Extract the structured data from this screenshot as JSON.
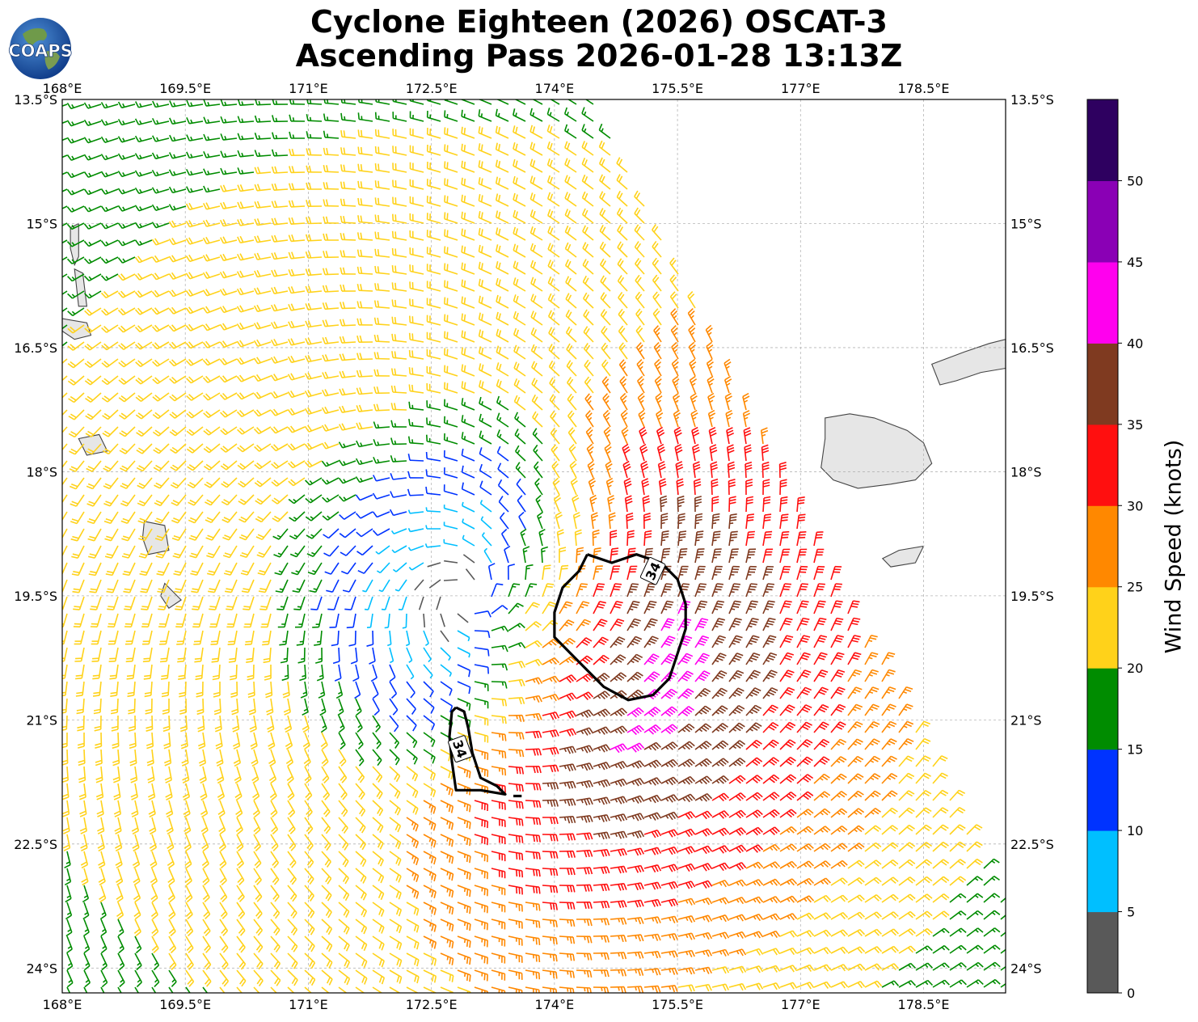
{
  "header": {
    "title_line1": "Cyclone Eighteen (2026) OSCAT-3",
    "title_line2": "Ascending Pass 2026-01-28 13:13Z",
    "logo_text": "COAPS"
  },
  "map": {
    "lon_range": [
      168.0,
      179.5
    ],
    "lat_range": [
      -24.3,
      -13.5
    ],
    "lon_ticks": [
      {
        "value": 168.0,
        "label": "168°E"
      },
      {
        "value": 169.5,
        "label": "169.5°E"
      },
      {
        "value": 171.0,
        "label": "171°E"
      },
      {
        "value": 172.5,
        "label": "172.5°E"
      },
      {
        "value": 174.0,
        "label": "174°E"
      },
      {
        "value": 175.5,
        "label": "175.5°E"
      },
      {
        "value": 177.0,
        "label": "177°E"
      },
      {
        "value": 178.5,
        "label": "178.5°E"
      }
    ],
    "lat_ticks": [
      {
        "value": -13.5,
        "label": "13.5°S"
      },
      {
        "value": -15.0,
        "label": "15°S"
      },
      {
        "value": -16.5,
        "label": "16.5°S"
      },
      {
        "value": -18.0,
        "label": "18°S"
      },
      {
        "value": -19.5,
        "label": "19.5°S"
      },
      {
        "value": -21.0,
        "label": "21°S"
      },
      {
        "value": -22.5,
        "label": "22.5°S"
      },
      {
        "value": -24.0,
        "label": "24°S"
      }
    ],
    "gridlines": true,
    "cyclone_center": {
      "lon": 172.9,
      "lat": -19.5
    },
    "contour_label": "34",
    "contours": [
      {
        "label": "34",
        "points": [
          [
            174.4,
            -19.0
          ],
          [
            174.7,
            -19.1
          ],
          [
            175.0,
            -19.0
          ],
          [
            175.3,
            -19.1
          ],
          [
            175.5,
            -19.3
          ],
          [
            175.6,
            -19.6
          ],
          [
            175.6,
            -19.9
          ],
          [
            175.5,
            -20.2
          ],
          [
            175.4,
            -20.5
          ],
          [
            175.2,
            -20.7
          ],
          [
            174.9,
            -20.76
          ],
          [
            174.6,
            -20.6
          ],
          [
            174.4,
            -20.4
          ],
          [
            174.2,
            -20.2
          ],
          [
            174.0,
            -20.0
          ],
          [
            174.0,
            -19.7
          ],
          [
            174.1,
            -19.4
          ],
          [
            174.3,
            -19.2
          ],
          [
            174.4,
            -19.0
          ]
        ]
      },
      {
        "label": "34",
        "points": [
          [
            172.8,
            -20.85
          ],
          [
            172.9,
            -20.9
          ],
          [
            172.95,
            -21.1
          ],
          [
            173.0,
            -21.4
          ],
          [
            173.1,
            -21.7
          ],
          [
            173.3,
            -21.8
          ],
          [
            173.4,
            -21.9
          ],
          [
            173.1,
            -21.85
          ],
          [
            172.8,
            -21.85
          ],
          [
            172.75,
            -21.5
          ],
          [
            172.72,
            -21.2
          ],
          [
            172.75,
            -20.9
          ],
          [
            172.8,
            -20.85
          ]
        ]
      },
      {
        "label": "",
        "points": [
          [
            173.5,
            -21.92
          ],
          [
            173.6,
            -21.92
          ]
        ]
      }
    ],
    "land": [
      {
        "name": "Viti Levu",
        "points": [
          [
            177.3,
            -17.35
          ],
          [
            177.6,
            -17.3
          ],
          [
            177.9,
            -17.35
          ],
          [
            178.3,
            -17.5
          ],
          [
            178.5,
            -17.65
          ],
          [
            178.6,
            -17.9
          ],
          [
            178.4,
            -18.1
          ],
          [
            178.1,
            -18.15
          ],
          [
            177.7,
            -18.2
          ],
          [
            177.4,
            -18.1
          ],
          [
            177.25,
            -17.95
          ],
          [
            177.3,
            -17.6
          ],
          [
            177.3,
            -17.35
          ]
        ]
      },
      {
        "name": "Vanua Levu",
        "points": [
          [
            178.6,
            -16.7
          ],
          [
            179.0,
            -16.55
          ],
          [
            179.3,
            -16.45
          ],
          [
            179.5,
            -16.4
          ],
          [
            179.5,
            -16.75
          ],
          [
            179.2,
            -16.8
          ],
          [
            178.9,
            -16.9
          ],
          [
            178.7,
            -16.95
          ],
          [
            178.6,
            -16.7
          ]
        ]
      },
      {
        "name": "Kadavu",
        "points": [
          [
            178.0,
            -19.05
          ],
          [
            178.2,
            -18.95
          ],
          [
            178.5,
            -18.9
          ],
          [
            178.4,
            -19.1
          ],
          [
            178.1,
            -19.15
          ],
          [
            178.0,
            -19.05
          ]
        ]
      },
      {
        "name": "Espiritu Santo",
        "points": [
          [
            168.0,
            -16.15
          ],
          [
            168.3,
            -16.2
          ],
          [
            168.35,
            -16.35
          ],
          [
            168.15,
            -16.4
          ],
          [
            168.0,
            -16.3
          ],
          [
            168.0,
            -16.15
          ]
        ]
      },
      {
        "name": "Efate",
        "points": [
          [
            168.2,
            -17.6
          ],
          [
            168.45,
            -17.55
          ],
          [
            168.55,
            -17.75
          ],
          [
            168.3,
            -17.8
          ],
          [
            168.2,
            -17.6
          ]
        ]
      },
      {
        "name": "Erromango",
        "points": [
          [
            169.0,
            -18.6
          ],
          [
            169.25,
            -18.65
          ],
          [
            169.3,
            -18.95
          ],
          [
            169.05,
            -19.0
          ],
          [
            168.98,
            -18.8
          ],
          [
            169.0,
            -18.6
          ]
        ]
      },
      {
        "name": "Tanna",
        "points": [
          [
            169.25,
            -19.35
          ],
          [
            169.45,
            -19.55
          ],
          [
            169.3,
            -19.65
          ],
          [
            169.2,
            -19.5
          ],
          [
            169.25,
            -19.35
          ]
        ]
      },
      {
        "name": "Malekula",
        "points": [
          [
            168.1,
            -15.05
          ],
          [
            168.2,
            -15.0
          ],
          [
            168.2,
            -15.4
          ],
          [
            168.15,
            -15.5
          ],
          [
            168.1,
            -15.3
          ],
          [
            168.1,
            -15.05
          ]
        ]
      },
      {
        "name": "Pentecost",
        "points": [
          [
            168.15,
            -15.55
          ],
          [
            168.25,
            -15.6
          ],
          [
            168.3,
            -16.0
          ],
          [
            168.2,
            -16.0
          ],
          [
            168.15,
            -15.55
          ]
        ]
      }
    ],
    "barb_field": {
      "note": "wind barbs in knots, colored by speed",
      "swath_lon_edges": [
        [
          168.0,
          174.45
        ],
        [
          179.0,
          177.2
        ]
      ],
      "swath_lat_edges": [
        -13.5,
        -24.3
      ]
    }
  },
  "colorbar": {
    "label": "Wind Speed (knots)",
    "ticks": [
      "0",
      "5",
      "10",
      "15",
      "20",
      "25",
      "30",
      "35",
      "40",
      "45",
      "50"
    ],
    "bins": [
      {
        "min": 0,
        "max": 5,
        "color": "#595959"
      },
      {
        "min": 5,
        "max": 10,
        "color": "#00bfff"
      },
      {
        "min": 10,
        "max": 15,
        "color": "#0033ff"
      },
      {
        "min": 15,
        "max": 20,
        "color": "#008c00"
      },
      {
        "min": 20,
        "max": 25,
        "color": "#ffd21a"
      },
      {
        "min": 25,
        "max": 30,
        "color": "#ff8800"
      },
      {
        "min": 30,
        "max": 35,
        "color": "#ff0f0f"
      },
      {
        "min": 35,
        "max": 40,
        "color": "#7f3a20"
      },
      {
        "min": 40,
        "max": 45,
        "color": "#ff00ee"
      },
      {
        "min": 45,
        "max": 50,
        "color": "#8a00b5"
      },
      {
        "min": 50,
        "max": 55,
        "color": "#2e0060"
      }
    ]
  }
}
